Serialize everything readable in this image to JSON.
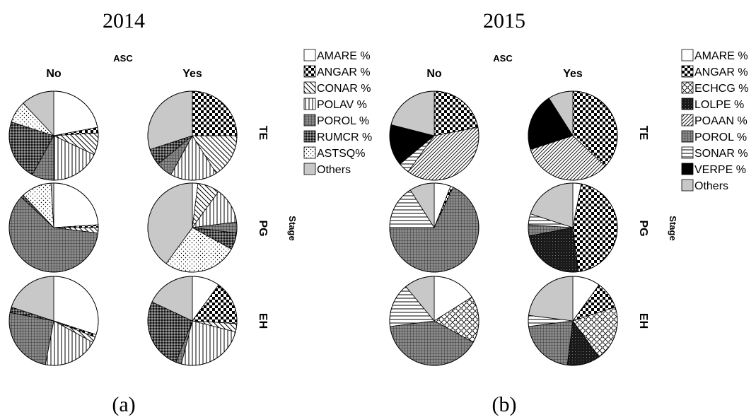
{
  "figure": {
    "labels": {
      "panel_a": "(a)",
      "panel_b": "(b)"
    }
  },
  "chart_data": [
    {
      "type": "pie",
      "title": "2014",
      "facet_column_title": "ASC",
      "facet_row_title": "Stage",
      "columns": [
        "No",
        "Yes"
      ],
      "rows": [
        "TE",
        "PG",
        "EH"
      ],
      "legend": [
        "AMARE %",
        "ANGAR %",
        "CONAR %",
        "POLAV %",
        "POROL %",
        "RUMCR %",
        "ASTSQ%",
        "Others"
      ],
      "legend_position": "right",
      "pies": [
        {
          "column": "No",
          "row": "TE",
          "values": {
            "AMARE %": 22,
            "ANGAR %": 2,
            "CONAR %": 8,
            "POLAV %": 18,
            "POROL %": 8,
            "RUMCR %": 22,
            "ASTSQ%": 8,
            "Others": 12
          }
        },
        {
          "column": "Yes",
          "row": "TE",
          "values": {
            "AMARE %": 0,
            "ANGAR %": 25,
            "CONAR %": 16,
            "POLAV %": 17,
            "POROL %": 6,
            "RUMCR %": 6,
            "ASTSQ%": 0,
            "Others": 30
          }
        },
        {
          "column": "No",
          "row": "PG",
          "values": {
            "AMARE %": 24,
            "ANGAR %": 1,
            "CONAR %": 2,
            "POLAV %": 0,
            "POROL %": 60,
            "RUMCR %": 1,
            "ASTSQ%": 11,
            "Others": 1
          }
        },
        {
          "column": "Yes",
          "row": "PG",
          "values": {
            "AMARE %": 2,
            "ANGAR %": 0,
            "CONAR %": 8,
            "POLAV %": 13,
            "POROL %": 4,
            "RUMCR %": 6,
            "ASTSQ%": 27,
            "Others": 40
          }
        },
        {
          "column": "No",
          "row": "EH",
          "values": {
            "AMARE %": 30,
            "ANGAR %": 1,
            "CONAR %": 2,
            "POLAV %": 20,
            "POROL %": 25,
            "RUMCR %": 2,
            "ASTSQ%": 0,
            "Others": 20
          }
        },
        {
          "column": "Yes",
          "row": "EH",
          "values": {
            "AMARE %": 10,
            "ANGAR %": 16,
            "CONAR %": 3,
            "POLAV %": 25,
            "POROL %": 2,
            "RUMCR %": 26,
            "ASTSQ%": 0,
            "Others": 18
          }
        }
      ]
    },
    {
      "type": "pie",
      "title": "2015",
      "facet_column_title": "ASC",
      "facet_row_title": "Stage",
      "columns": [
        "No",
        "Yes"
      ],
      "rows": [
        "TE",
        "PG",
        "EH"
      ],
      "legend": [
        "AMARE %",
        "ANGAR %",
        "ECHCG %",
        "LOLPE %",
        "POAAN %",
        "POROL %",
        "SONAR %",
        "VERPE %",
        "Others"
      ],
      "legend_position": "right",
      "pies": [
        {
          "column": "No",
          "row": "TE",
          "values": {
            "AMARE %": 0,
            "ANGAR %": 22,
            "ECHCG %": 0,
            "LOLPE %": 0,
            "POAAN %": 38,
            "POROL %": 0,
            "SONAR %": 4,
            "VERPE %": 15,
            "Others": 21
          }
        },
        {
          "column": "Yes",
          "row": "TE",
          "values": {
            "AMARE %": 0,
            "ANGAR %": 37,
            "ECHCG %": 0,
            "LOLPE %": 0,
            "POAAN %": 33,
            "POROL %": 0,
            "SONAR %": 0,
            "VERPE %": 21,
            "Others": 9
          }
        },
        {
          "column": "No",
          "row": "PG",
          "values": {
            "AMARE %": 6,
            "ANGAR %": 1,
            "ECHCG %": 0,
            "LOLPE %": 0,
            "POAAN %": 0,
            "POROL %": 68,
            "SONAR %": 16,
            "VERPE %": 0,
            "Others": 9
          }
        },
        {
          "column": "Yes",
          "row": "PG",
          "values": {
            "AMARE %": 3,
            "ANGAR %": 45,
            "ECHCG %": 0,
            "LOLPE %": 24,
            "POAAN %": 0,
            "POROL %": 4,
            "SONAR %": 4,
            "VERPE %": 0,
            "Others": 20
          }
        },
        {
          "column": "No",
          "row": "EH",
          "values": {
            "AMARE %": 16,
            "ANGAR %": 0,
            "ECHCG %": 17,
            "LOLPE %": 0,
            "POAAN %": 0,
            "POROL %": 40,
            "SONAR %": 16,
            "VERPE %": 0,
            "Others": 11
          }
        },
        {
          "column": "Yes",
          "row": "EH",
          "values": {
            "AMARE %": 10,
            "ANGAR %": 10,
            "ECHCG %": 20,
            "LOLPE %": 12,
            "POAAN %": 0,
            "POROL %": 21,
            "SONAR %": 4,
            "VERPE %": 0,
            "Others": 23
          }
        }
      ]
    }
  ]
}
